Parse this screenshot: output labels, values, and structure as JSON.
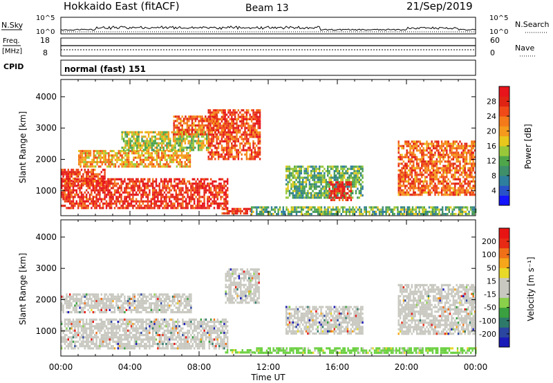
{
  "header": {
    "station": "Hokkaido East (fitACF)",
    "beam": "Beam 13",
    "date": "21/Sep/2019"
  },
  "top_panels": {
    "nsky_label": "N.Sky",
    "nsky_ticks": [
      "10^5",
      "10^0"
    ],
    "nsearch_label": "N.Search",
    "nsearch_ticks": [
      "10^5",
      "10^0"
    ],
    "freq_label": "Freq.",
    "freq_unit": "[MHz]",
    "freq_ticks": [
      "18",
      "8"
    ],
    "nave_label": "Nave",
    "nave_ticks": [
      "60",
      "0"
    ],
    "cpid_label": "CPID",
    "cpid_text": "normal (fast) 151"
  },
  "chart_data": [
    {
      "type": "heatmap",
      "name": "power",
      "ylabel": "Slant Range [km]",
      "yticks": [
        1000,
        2000,
        3000,
        4000
      ],
      "ylim": [
        200,
        4550
      ],
      "xlim": [
        0,
        24
      ],
      "colorbar": {
        "label": "Power [dB]",
        "ticks": [
          "4",
          "8",
          "12",
          "16",
          "20",
          "24",
          "28"
        ],
        "range": [
          0,
          32
        ],
        "colors": [
          "#1414ff",
          "#2a52c8",
          "#2e7e9e",
          "#3e8f6a",
          "#4fa64a",
          "#98c83a",
          "#e8c81c",
          "#f59a1c",
          "#f47a1a",
          "#ef4a18",
          "#e02414",
          "#e8141c"
        ]
      },
      "regions": [
        {
          "t0": 0.0,
          "t1": 9.6,
          "r0": 450,
          "r1": 1400,
          "level": 28
        },
        {
          "t0": 0.0,
          "t1": 2.5,
          "r0": 1200,
          "r1": 1700,
          "level": 26
        },
        {
          "t0": 1.0,
          "t1": 7.5,
          "r0": 1800,
          "r1": 2300,
          "level": 20
        },
        {
          "t0": 3.5,
          "t1": 8.5,
          "r0": 2300,
          "r1": 2900,
          "level": 16
        },
        {
          "t0": 6.5,
          "t1": 9.0,
          "r0": 2800,
          "r1": 3400,
          "level": 24
        },
        {
          "t0": 8.5,
          "t1": 11.5,
          "r0": 2000,
          "r1": 3600,
          "level": 26
        },
        {
          "t0": 9.3,
          "t1": 11.0,
          "r0": 300,
          "r1": 450,
          "level": 28
        },
        {
          "t0": 13.0,
          "t1": 17.5,
          "r0": 800,
          "r1": 1800,
          "level": 12
        },
        {
          "t0": 15.5,
          "t1": 16.8,
          "r0": 700,
          "r1": 1300,
          "level": 28
        },
        {
          "t0": 11.0,
          "t1": 24.0,
          "r0": 250,
          "r1": 500,
          "level": 12
        },
        {
          "t0": 19.5,
          "t1": 24.0,
          "r0": 900,
          "r1": 2600,
          "level": 24
        }
      ]
    },
    {
      "type": "heatmap",
      "name": "velocity",
      "ylabel": "Slant Range [km]",
      "xlabel": "Time UT",
      "yticks": [
        1000,
        2000,
        3000,
        4000
      ],
      "xticks": [
        "00:00",
        "04:00",
        "08:00",
        "12:00",
        "16:00",
        "20:00",
        "00:00"
      ],
      "ylim": [
        200,
        4550
      ],
      "xlim": [
        0,
        24
      ],
      "colorbar": {
        "label": "Velocity [m s⁻¹]",
        "ticks": [
          "200",
          "100",
          "50",
          "15",
          "-15",
          "-50",
          "-100",
          "-200"
        ],
        "colors": [
          "#1a1ab8",
          "#2a46a0",
          "#2e7a6a",
          "#3aa040",
          "#8ad04a",
          "#c8c8c0",
          "#c8c8c0",
          "#e8d828",
          "#f5a61a",
          "#f07018",
          "#e82a14",
          "#e81414"
        ]
      },
      "regions": [
        {
          "t0": 0.0,
          "t1": 9.6,
          "r0": 450,
          "r1": 1400,
          "level": "gray"
        },
        {
          "t0": 0.0,
          "t1": 7.5,
          "r0": 1600,
          "r1": 2200,
          "level": "gray"
        },
        {
          "t0": 9.5,
          "t1": 11.5,
          "r0": 1900,
          "r1": 3000,
          "level": "gray"
        },
        {
          "t0": 9.5,
          "t1": 11.2,
          "r0": 280,
          "r1": 420,
          "level": "green"
        },
        {
          "t0": 11.2,
          "t1": 24.0,
          "r0": 280,
          "r1": 480,
          "level": "green"
        },
        {
          "t0": 13.0,
          "t1": 17.5,
          "r0": 900,
          "r1": 1800,
          "level": "gray"
        },
        {
          "t0": 19.5,
          "t1": 24.0,
          "r0": 900,
          "r1": 2500,
          "level": "gray"
        }
      ]
    }
  ]
}
